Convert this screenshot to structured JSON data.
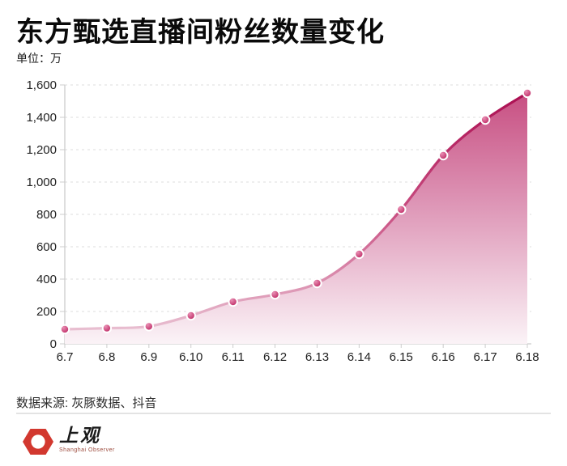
{
  "header": {
    "title": "东方甄选直播间粉丝数量变化",
    "unit_label": "单位：万"
  },
  "footer": {
    "source": "数据来源: 灰豚数据、抖音",
    "logo_name": "上观",
    "logo_subtitle": "Shanghai Observer",
    "logo_color": "#d2382f"
  },
  "chart_data": {
    "type": "area",
    "title": "东方甄选直播间粉丝数量变化",
    "xlabel": "",
    "ylabel": "单位：万",
    "categories": [
      "6.7",
      "6.8",
      "6.9",
      "6.10",
      "6.11",
      "6.12",
      "6.13",
      "6.14",
      "6.15",
      "6.16",
      "6.17",
      "6.18"
    ],
    "values": [
      90,
      97,
      108,
      175,
      260,
      305,
      375,
      555,
      830,
      1165,
      1385,
      1550
    ],
    "ylim": [
      0,
      1600
    ],
    "ytick_step": 200,
    "ytick_labels": [
      "0",
      "200",
      "400",
      "600",
      "800",
      "1,000",
      "1,200",
      "1,400",
      "1,600"
    ],
    "grid": "horizontal-dashed",
    "legend": "none",
    "smooth": true,
    "colors": {
      "line_top": "#a90a4e",
      "line_mid": "#c94f82",
      "line_bottom": "#ecccda",
      "fill_top": "#c64a7e",
      "fill_mid": "#dd94b5",
      "fill_bottom": "#fbf3f7",
      "marker_light": "#e98fb4",
      "marker_dark": "#ba1f5c",
      "axis": "#cccccc",
      "gridline": "#e4e4e4",
      "tick_label": "#222222"
    }
  }
}
